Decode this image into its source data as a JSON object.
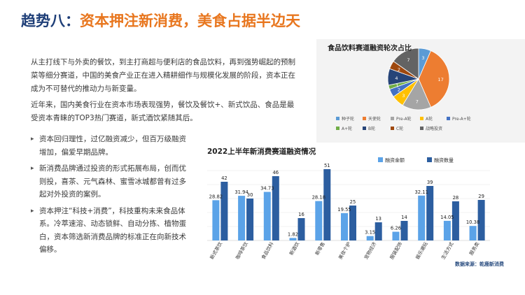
{
  "header": {
    "prefix": "趋势八：",
    "text": "资本押注新消费，美食占据半边天"
  },
  "intro": {
    "p1": "从主打线下与外卖的餐饮，到主打商超与便利店的食品饮料，再到强势崛起的预制菜等细分赛道，中国的美食产业正在进入精耕细作与规模化发展的阶段，资本正在成为不可替代的推动力与新变量。",
    "p2": "近年来，国内美食行业在资本市场表现强势，餐饮及餐饮+、新式饮品、食品是最受资本青睐的TOP3热门赛道，新式酒饮紧随其后。"
  },
  "bullets": [
    "资本回归理性，过亿融资减少，但百万级融资增加，偏爱早期品牌。",
    "新消费品牌通过投资的形式拓展布局，创而优则投，喜茶、元气森林、蜜雪冰城都曾有过多起对外投资的案例。",
    "资本押注“科技+消费”，科技重构未来食品体系。冷萃速溶、动态锁鲜、自动分拣、植物蛋白，资本筛选新消费品牌的标准正在向新技术偏移。"
  ],
  "source": "数据来源：乾鹿新消费",
  "colors": {
    "amount": "#5ba3e8",
    "count": "#2c5ea0",
    "title_accent": "#e8761e",
    "title_dark": "#1f3f78"
  },
  "chart_data": [
    {
      "type": "pie",
      "title": "食品饮料赛道融资轮次占比",
      "slices": [
        {
          "label": "种子轮",
          "value": 3,
          "color": "#5b9bd5"
        },
        {
          "label": "天使轮",
          "value": 17,
          "color": "#ed7d31"
        },
        {
          "label": "Pre-A轮",
          "value": 7,
          "color": "#a5a5a5"
        },
        {
          "label": "A轮",
          "value": 3,
          "color": "#ffc000"
        },
        {
          "label": "Pre-A+轮",
          "value": 2,
          "color": "#4472c4"
        },
        {
          "label": "A+轮",
          "value": 1,
          "color": "#70ad47"
        },
        {
          "label": "B轮",
          "value": 4,
          "color": "#264478"
        },
        {
          "label": "C轮",
          "value": 2,
          "color": "#9e480e"
        },
        {
          "label": "战略投资",
          "value": 7,
          "color": "#636363"
        }
      ],
      "legend_position": "bottom"
    },
    {
      "type": "bar",
      "title": "2022上半年新消费赛道融资情况",
      "categories": [
        "新式茶饮",
        "咖啡茶饮",
        "食品饮料",
        "新酒饮",
        "新零售",
        "美妆个护",
        "宠物经济",
        "服装配饰",
        "娱乐潮玩",
        "生活方式",
        "服务类"
      ],
      "series": [
        {
          "name": "融资金额",
          "values": [
            28.82,
            31.94,
            34.73,
            1.82,
            28.18,
            19.55,
            3.15,
            6.26,
            32.11,
            14.05,
            10.38
          ]
        },
        {
          "name": "融资数量",
          "values": [
            42,
            30,
            46,
            16,
            51,
            25,
            13,
            14,
            39,
            28,
            29
          ]
        }
      ],
      "legend_position": "top-right",
      "ylim": [
        0,
        55
      ],
      "grid": true
    }
  ]
}
